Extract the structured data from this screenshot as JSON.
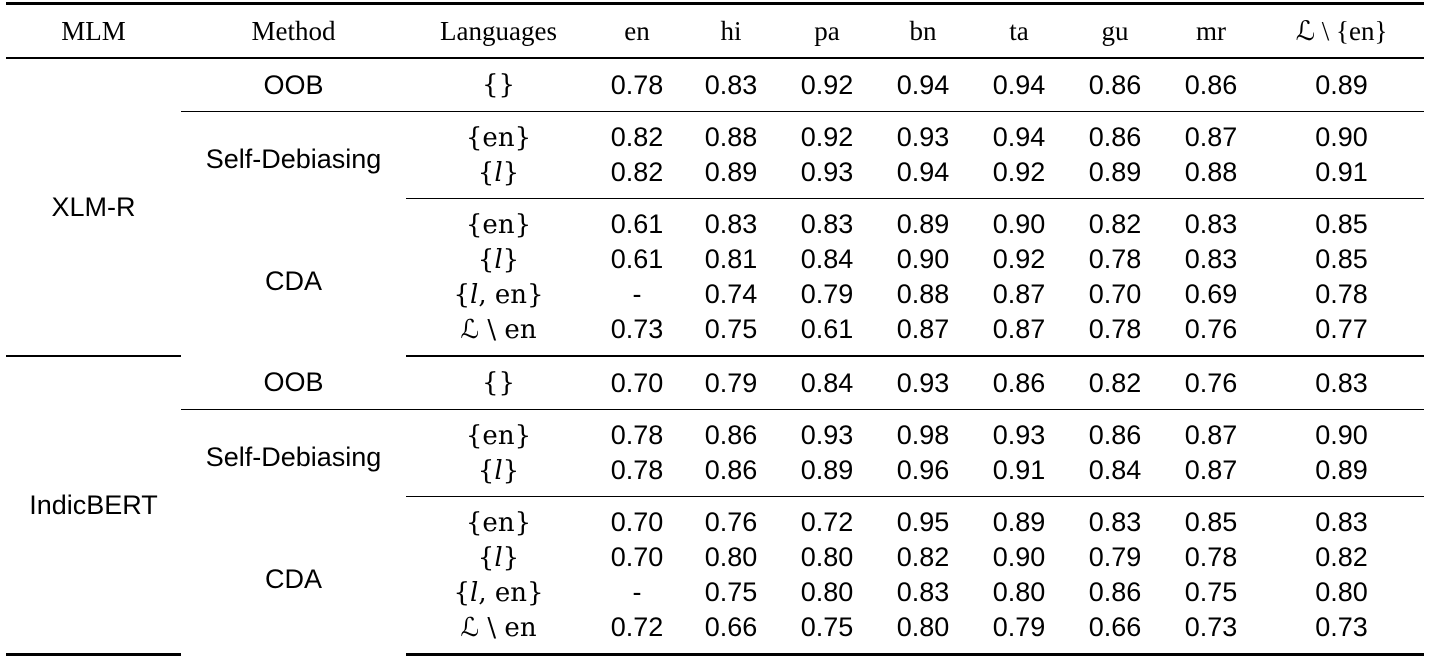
{
  "table": {
    "headers": [
      "MLM",
      "Method",
      "Languages",
      "en",
      "hi",
      "pa",
      "bn",
      "ta",
      "gu",
      "mr",
      "ℒ \\ {en}"
    ],
    "models": [
      {
        "name": "XLM-R",
        "groups": [
          {
            "method": "OOB",
            "rows": [
              {
                "lang": "{}",
                "values": [
                  "0.78",
                  "0.83",
                  "0.92",
                  "0.94",
                  "0.94",
                  "0.86",
                  "0.86",
                  "0.89"
                ],
                "bold": []
              }
            ]
          },
          {
            "method": "Self-Debiasing",
            "rows": [
              {
                "lang": "{en}",
                "values": [
                  "0.82",
                  "0.88",
                  "0.92",
                  "0.93",
                  "0.94",
                  "0.86",
                  "0.87",
                  "0.90"
                ],
                "bold": []
              },
              {
                "lang": "{𝑙}",
                "values": [
                  "0.82",
                  "0.89",
                  "0.93",
                  "0.94",
                  "0.92",
                  "0.89",
                  "0.88",
                  "0.91"
                ],
                "bold": []
              }
            ]
          },
          {
            "method": "CDA",
            "rows": [
              {
                "lang": "{en}",
                "values": [
                  "0.61",
                  "0.83",
                  "0.83",
                  "0.89",
                  "0.90",
                  "0.82",
                  "0.83",
                  "0.85"
                ],
                "bold": [
                  0
                ]
              },
              {
                "lang": "{𝑙}",
                "values": [
                  "0.61",
                  "0.81",
                  "0.84",
                  "0.90",
                  "0.92",
                  "0.78",
                  "0.83",
                  "0.85"
                ],
                "bold": [
                  0
                ]
              },
              {
                "lang": "{𝑙, en}",
                "values": [
                  "-",
                  "0.74",
                  "0.79",
                  "0.88",
                  "0.87",
                  "0.70",
                  "0.69",
                  "0.78"
                ],
                "bold": [
                  1,
                  5,
                  6
                ]
              },
              {
                "lang": "ℒ \\ en",
                "values": [
                  "0.73",
                  "0.75",
                  "0.61",
                  "0.87",
                  "0.87",
                  "0.78",
                  "0.76",
                  "0.77"
                ],
                "bold": [
                  2,
                  3,
                  4,
                  7
                ]
              }
            ]
          }
        ]
      },
      {
        "name": "IndicBERT",
        "groups": [
          {
            "method": "OOB",
            "rows": [
              {
                "lang": "{}",
                "values": [
                  "0.70",
                  "0.79",
                  "0.84",
                  "0.93",
                  "0.86",
                  "0.82",
                  "0.76",
                  "0.83"
                ],
                "bold": [
                  0
                ]
              }
            ]
          },
          {
            "method": "Self-Debiasing",
            "rows": [
              {
                "lang": "{en}",
                "values": [
                  "0.78",
                  "0.86",
                  "0.93",
                  "0.98",
                  "0.93",
                  "0.86",
                  "0.87",
                  "0.90"
                ],
                "bold": []
              },
              {
                "lang": "{𝑙}",
                "values": [
                  "0.78",
                  "0.86",
                  "0.89",
                  "0.96",
                  "0.91",
                  "0.84",
                  "0.87",
                  "0.89"
                ],
                "bold": []
              }
            ]
          },
          {
            "method": "CDA",
            "rows": [
              {
                "lang": "{en}",
                "values": [
                  "0.70",
                  "0.76",
                  "0.72",
                  "0.95",
                  "0.89",
                  "0.83",
                  "0.85",
                  "0.83"
                ],
                "bold": [
                  2
                ]
              },
              {
                "lang": "{𝑙}",
                "values": [
                  "0.70",
                  "0.80",
                  "0.80",
                  "0.82",
                  "0.90",
                  "0.79",
                  "0.78",
                  "0.82"
                ],
                "bold": []
              },
              {
                "lang": "{𝑙, en}",
                "values": [
                  "-",
                  "0.75",
                  "0.80",
                  "0.83",
                  "0.80",
                  "0.86",
                  "0.75",
                  "0.80"
                ],
                "bold": []
              },
              {
                "lang": "ℒ \\ en",
                "values": [
                  "0.72",
                  "0.66",
                  "0.75",
                  "0.80",
                  "0.79",
                  "0.66",
                  "0.73",
                  "0.73"
                ],
                "bold": [
                  1,
                  3,
                  4,
                  5,
                  6,
                  7
                ]
              }
            ]
          }
        ]
      }
    ]
  }
}
